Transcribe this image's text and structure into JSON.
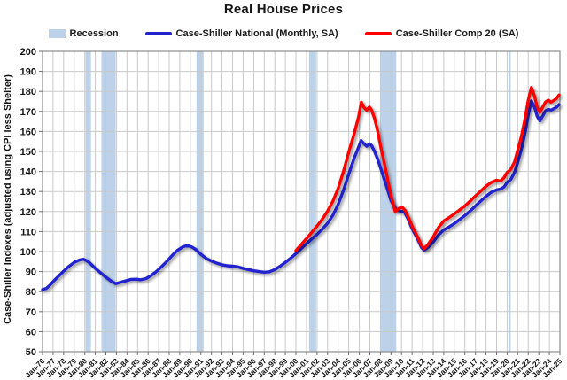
{
  "title": "Real House Prices",
  "y_axis_title": "Case-Shiller Indexes (adjusted using CPI less Shelter)",
  "legend": {
    "recession_label": "Recession",
    "national_label": "Case-Shiller National (Monthly, SA)",
    "comp20_label": "Case-Shiller Comp 20  (SA)"
  },
  "colors": {
    "national_line": "#2323CE",
    "comp20_line": "#FE0000",
    "recession_band": "#BCD2EA",
    "gridline": "#C9C9C9",
    "plot_border": "#8C8C8C",
    "tick": "#6E6E6E",
    "text": "#111111"
  },
  "chart_data": {
    "type": "line",
    "title": "Real House Prices",
    "xlabel": "",
    "ylabel": "Case-Shiller Indexes (adjusted using CPI less Shelter)",
    "xlim": [
      1976,
      2025
    ],
    "ylim": [
      50,
      200
    ],
    "grid": true,
    "legend_position": "top-center",
    "y_ticks": [
      50,
      60,
      70,
      80,
      90,
      100,
      110,
      120,
      130,
      140,
      150,
      160,
      170,
      180,
      190,
      200
    ],
    "x_tick_labels": [
      "Jan-76",
      "Jan-77",
      "Jan-78",
      "Jan-79",
      "Jan-80",
      "Jan-81",
      "Jan-82",
      "Jan-83",
      "Jan-84",
      "Jan-85",
      "Jan-86",
      "Jan-87",
      "Jan-88",
      "Jan-89",
      "Jan-90",
      "Jan-91",
      "Jan-92",
      "Jan-93",
      "Jan-94",
      "Jan-95",
      "Jan-96",
      "Jan-97",
      "Jan-98",
      "Jan-99",
      "Jan-00",
      "Jan-01",
      "Jan-02",
      "Jan-03",
      "Jan-04",
      "Jan-05",
      "Jan-06",
      "Jan-07",
      "Jan-08",
      "Jan-09",
      "Jan-10",
      "Jan-11",
      "Jan-12",
      "Jan-13",
      "Jan-14",
      "Jan-15",
      "Jan-16",
      "Jan-17",
      "Jan-18",
      "Jan-19",
      "Jan-20",
      "Jan-21",
      "Jan-22",
      "Jan-23",
      "Jan-24",
      "Jan-25"
    ],
    "recession_color": "#BCD2EA",
    "recessions": [
      [
        1980.08,
        1980.58
      ],
      [
        1981.58,
        1982.92
      ],
      [
        1990.58,
        1991.25
      ],
      [
        2001.25,
        2001.92
      ],
      [
        2008.0,
        2009.5
      ],
      [
        2020.13,
        2020.33
      ]
    ],
    "series": [
      {
        "name": "Case-Shiller National (Monthly, SA)",
        "color": "#2323CE",
        "points": [
          [
            1976.0,
            81.0
          ],
          [
            1976.35,
            81.6
          ],
          [
            1976.7,
            83.2
          ],
          [
            1977.0,
            85.0
          ],
          [
            1977.5,
            87.6
          ],
          [
            1978.0,
            90.2
          ],
          [
            1978.5,
            92.6
          ],
          [
            1979.0,
            94.6
          ],
          [
            1979.5,
            95.8
          ],
          [
            1979.85,
            96.2
          ],
          [
            1980.2,
            95.4
          ],
          [
            1980.5,
            94.2
          ],
          [
            1981.0,
            91.6
          ],
          [
            1981.5,
            89.4
          ],
          [
            1982.0,
            87.2
          ],
          [
            1982.5,
            85.2
          ],
          [
            1982.95,
            84.0
          ],
          [
            1983.4,
            84.7
          ],
          [
            1983.9,
            85.4
          ],
          [
            1984.4,
            86.1
          ],
          [
            1984.9,
            86.2
          ],
          [
            1985.3,
            85.9
          ],
          [
            1985.8,
            86.5
          ],
          [
            1986.3,
            88.1
          ],
          [
            1986.8,
            90.1
          ],
          [
            1987.3,
            92.6
          ],
          [
            1987.8,
            95.2
          ],
          [
            1988.3,
            98.2
          ],
          [
            1988.8,
            100.7
          ],
          [
            1989.3,
            102.4
          ],
          [
            1989.7,
            103.0
          ],
          [
            1990.1,
            102.4
          ],
          [
            1990.5,
            101.1
          ],
          [
            1991.0,
            98.6
          ],
          [
            1991.5,
            96.6
          ],
          [
            1992.0,
            95.2
          ],
          [
            1992.5,
            94.2
          ],
          [
            1993.0,
            93.4
          ],
          [
            1993.5,
            92.9
          ],
          [
            1994.0,
            92.7
          ],
          [
            1994.5,
            92.4
          ],
          [
            1995.0,
            91.6
          ],
          [
            1995.5,
            91.0
          ],
          [
            1996.0,
            90.4
          ],
          [
            1996.5,
            90.0
          ],
          [
            1997.0,
            89.7
          ],
          [
            1997.5,
            89.9
          ],
          [
            1998.0,
            91.0
          ],
          [
            1998.5,
            92.7
          ],
          [
            1999.0,
            94.6
          ],
          [
            1999.5,
            96.7
          ],
          [
            2000.0,
            99.0
          ],
          [
            2000.5,
            101.5
          ],
          [
            2001.0,
            104.0
          ],
          [
            2001.5,
            106.3
          ],
          [
            2002.0,
            108.6
          ],
          [
            2002.5,
            111.2
          ],
          [
            2003.0,
            114.2
          ],
          [
            2003.5,
            118.2
          ],
          [
            2004.0,
            123.6
          ],
          [
            2004.5,
            130.6
          ],
          [
            2005.0,
            138.6
          ],
          [
            2005.5,
            146.5
          ],
          [
            2005.92,
            152.0
          ],
          [
            2006.17,
            155.5
          ],
          [
            2006.45,
            153.8
          ],
          [
            2006.7,
            152.6
          ],
          [
            2006.95,
            153.8
          ],
          [
            2007.15,
            153.0
          ],
          [
            2007.45,
            150.0
          ],
          [
            2007.75,
            146.0
          ],
          [
            2008.0,
            142.0
          ],
          [
            2008.5,
            134.0
          ],
          [
            2009.0,
            125.5
          ],
          [
            2009.5,
            121.0
          ],
          [
            2010.0,
            120.0
          ],
          [
            2010.3,
            119.5
          ],
          [
            2010.6,
            116.5
          ],
          [
            2011.0,
            111.5
          ],
          [
            2011.5,
            106.5
          ],
          [
            2011.9,
            102.0
          ],
          [
            2012.15,
            100.8
          ],
          [
            2012.5,
            102.0
          ],
          [
            2013.0,
            104.8
          ],
          [
            2013.5,
            108.3
          ],
          [
            2014.0,
            110.8
          ],
          [
            2014.5,
            112.3
          ],
          [
            2015.0,
            114.0
          ],
          [
            2015.5,
            116.0
          ],
          [
            2016.0,
            118.0
          ],
          [
            2016.5,
            120.3
          ],
          [
            2017.0,
            122.8
          ],
          [
            2017.5,
            125.2
          ],
          [
            2018.0,
            127.6
          ],
          [
            2018.5,
            129.6
          ],
          [
            2019.0,
            130.8
          ],
          [
            2019.35,
            131.2
          ],
          [
            2019.7,
            132.2
          ],
          [
            2020.0,
            134.5
          ],
          [
            2020.35,
            136.0
          ],
          [
            2020.7,
            139.5
          ],
          [
            2021.0,
            144.5
          ],
          [
            2021.35,
            151.0
          ],
          [
            2021.7,
            159.5
          ],
          [
            2022.0,
            168.0
          ],
          [
            2022.3,
            175.3
          ],
          [
            2022.6,
            172.0
          ],
          [
            2022.85,
            167.5
          ],
          [
            2023.1,
            165.3
          ],
          [
            2023.4,
            168.0
          ],
          [
            2023.65,
            170.3
          ],
          [
            2023.9,
            171.0
          ],
          [
            2024.15,
            170.6
          ],
          [
            2024.4,
            171.3
          ],
          [
            2024.65,
            172.0
          ],
          [
            2024.92,
            173.4
          ]
        ]
      },
      {
        "name": "Case-Shiller Comp 20  (SA)",
        "color": "#FE0000",
        "points": [
          [
            2000.0,
            100.5
          ],
          [
            2000.5,
            103.5
          ],
          [
            2001.0,
            106.5
          ],
          [
            2001.5,
            109.6
          ],
          [
            2002.0,
            112.8
          ],
          [
            2002.5,
            116.2
          ],
          [
            2003.0,
            120.2
          ],
          [
            2003.5,
            125.2
          ],
          [
            2004.0,
            131.6
          ],
          [
            2004.5,
            140.0
          ],
          [
            2005.0,
            149.6
          ],
          [
            2005.5,
            158.6
          ],
          [
            2005.92,
            167.0
          ],
          [
            2006.2,
            174.6
          ],
          [
            2006.45,
            172.0
          ],
          [
            2006.7,
            170.6
          ],
          [
            2006.95,
            172.2
          ],
          [
            2007.15,
            170.8
          ],
          [
            2007.45,
            166.5
          ],
          [
            2007.75,
            160.0
          ],
          [
            2008.0,
            153.0
          ],
          [
            2008.5,
            141.0
          ],
          [
            2009.0,
            128.0
          ],
          [
            2009.4,
            120.0
          ],
          [
            2009.75,
            121.5
          ],
          [
            2010.05,
            122.3
          ],
          [
            2010.35,
            120.5
          ],
          [
            2010.65,
            117.0
          ],
          [
            2011.0,
            112.8
          ],
          [
            2011.5,
            107.5
          ],
          [
            2011.9,
            103.0
          ],
          [
            2012.15,
            101.5
          ],
          [
            2012.5,
            103.5
          ],
          [
            2013.0,
            107.3
          ],
          [
            2013.5,
            112.0
          ],
          [
            2014.0,
            115.3
          ],
          [
            2014.5,
            117.0
          ],
          [
            2015.0,
            118.8
          ],
          [
            2015.5,
            120.8
          ],
          [
            2016.0,
            122.8
          ],
          [
            2016.5,
            125.2
          ],
          [
            2017.0,
            127.8
          ],
          [
            2017.5,
            130.2
          ],
          [
            2018.0,
            132.6
          ],
          [
            2018.5,
            134.5
          ],
          [
            2019.0,
            135.6
          ],
          [
            2019.35,
            135.2
          ],
          [
            2019.7,
            136.8
          ],
          [
            2020.0,
            139.5
          ],
          [
            2020.35,
            141.0
          ],
          [
            2020.7,
            144.8
          ],
          [
            2021.0,
            150.5
          ],
          [
            2021.35,
            157.5
          ],
          [
            2021.7,
            166.5
          ],
          [
            2022.0,
            175.5
          ],
          [
            2022.3,
            182.0
          ],
          [
            2022.6,
            177.5
          ],
          [
            2022.85,
            172.0
          ],
          [
            2023.1,
            169.5
          ],
          [
            2023.4,
            172.5
          ],
          [
            2023.65,
            174.8
          ],
          [
            2023.9,
            175.6
          ],
          [
            2024.15,
            174.6
          ],
          [
            2024.4,
            175.4
          ],
          [
            2024.65,
            176.3
          ],
          [
            2024.92,
            178.2
          ]
        ]
      }
    ]
  }
}
